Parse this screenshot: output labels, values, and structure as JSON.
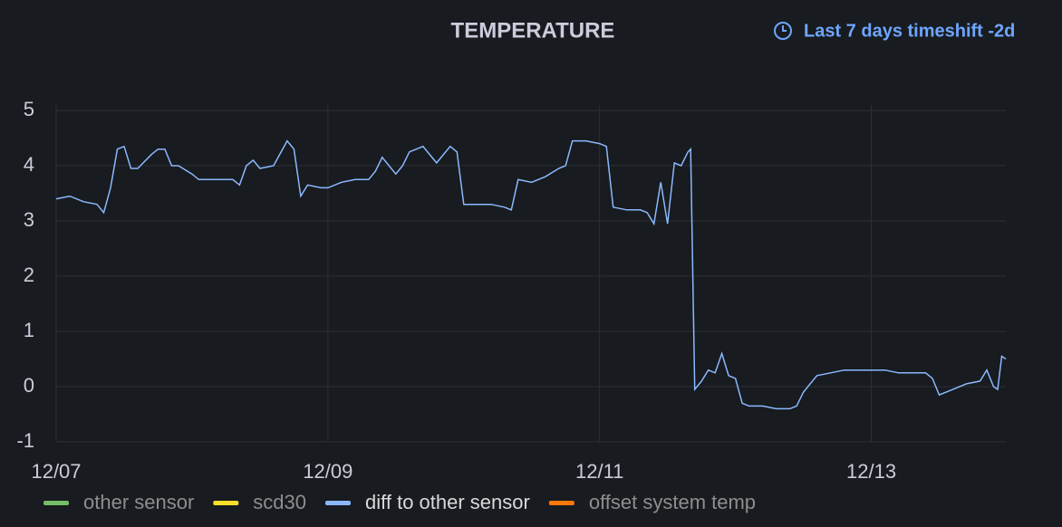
{
  "chart_data": {
    "type": "line",
    "title": "TEMPERATURE",
    "time_range": "Last 7 days timeshift -2d",
    "x": [
      0,
      0.1,
      0.2,
      0.3,
      0.35,
      0.4,
      0.45,
      0.5,
      0.55,
      0.6,
      0.7,
      0.75,
      0.8,
      0.85,
      0.9,
      1.0,
      1.05,
      1.1,
      1.2,
      1.3,
      1.35,
      1.4,
      1.45,
      1.5,
      1.6,
      1.7,
      1.75,
      1.8,
      1.85,
      1.95,
      2.0,
      2.1,
      2.2,
      2.3,
      2.35,
      2.4,
      2.5,
      2.55,
      2.6,
      2.7,
      2.8,
      2.9,
      2.95,
      3.0,
      3.1,
      3.2,
      3.3,
      3.35,
      3.4,
      3.5,
      3.6,
      3.7,
      3.75,
      3.8,
      3.9,
      4.0,
      4.05,
      4.1,
      4.2,
      4.3,
      4.35,
      4.4,
      4.45,
      4.5,
      4.55,
      4.6,
      4.65,
      4.67,
      4.7,
      4.75,
      4.8,
      4.85,
      4.9,
      4.95,
      5.0,
      5.05,
      5.1,
      5.2,
      5.3,
      5.4,
      5.45,
      5.5,
      5.55,
      5.6,
      5.7,
      5.8,
      5.9,
      6.0,
      6.1,
      6.2,
      6.3,
      6.4,
      6.45,
      6.5,
      6.6,
      6.7,
      6.8,
      6.85,
      6.9,
      6.93,
      6.96,
      6.99
    ],
    "series": [
      {
        "name": "other sensor",
        "color": "#73bf69",
        "visible": false
      },
      {
        "name": "scd30",
        "color": "#fade2a",
        "visible": false
      },
      {
        "name": "diff to other sensor",
        "color": "#8ab8ff",
        "visible": true,
        "values": [
          3.4,
          3.45,
          3.35,
          3.3,
          3.15,
          3.6,
          4.3,
          4.35,
          3.95,
          3.95,
          4.2,
          4.3,
          4.3,
          4.0,
          4.0,
          3.85,
          3.75,
          3.75,
          3.75,
          3.75,
          3.65,
          4.0,
          4.1,
          3.95,
          4.0,
          4.45,
          4.3,
          3.45,
          3.65,
          3.6,
          3.6,
          3.7,
          3.75,
          3.75,
          3.9,
          4.15,
          3.85,
          4.0,
          4.25,
          4.35,
          4.05,
          4.35,
          4.25,
          3.3,
          3.3,
          3.3,
          3.25,
          3.2,
          3.75,
          3.7,
          3.8,
          3.95,
          4.0,
          4.45,
          4.45,
          4.4,
          4.35,
          3.25,
          3.2,
          3.2,
          3.15,
          2.95,
          3.7,
          2.95,
          4.05,
          4.0,
          4.25,
          4.3,
          -0.05,
          0.1,
          0.3,
          0.25,
          0.6,
          0.2,
          0.15,
          -0.3,
          -0.35,
          -0.35,
          -0.4,
          -0.4,
          -0.35,
          -0.1,
          0.05,
          0.2,
          0.25,
          0.3,
          0.3,
          0.3,
          0.3,
          0.25,
          0.25,
          0.25,
          0.15,
          -0.15,
          -0.05,
          0.05,
          0.1,
          0.3,
          0.0,
          -0.05,
          0.55,
          0.5
        ]
      },
      {
        "name": "offset system temp",
        "color": "#ff780a",
        "visible": false
      }
    ],
    "xlim": [
      0,
      6.99
    ],
    "xticks": [
      {
        "value": 0,
        "label": "12/07"
      },
      {
        "value": 2,
        "label": "12/09"
      },
      {
        "value": 4,
        "label": "12/11"
      },
      {
        "value": 6,
        "label": "12/13"
      }
    ],
    "ylim": [
      -1,
      5
    ],
    "yticks": [
      -1,
      0,
      1,
      2,
      3,
      4,
      5
    ],
    "grid": true,
    "legend": "bottom"
  }
}
